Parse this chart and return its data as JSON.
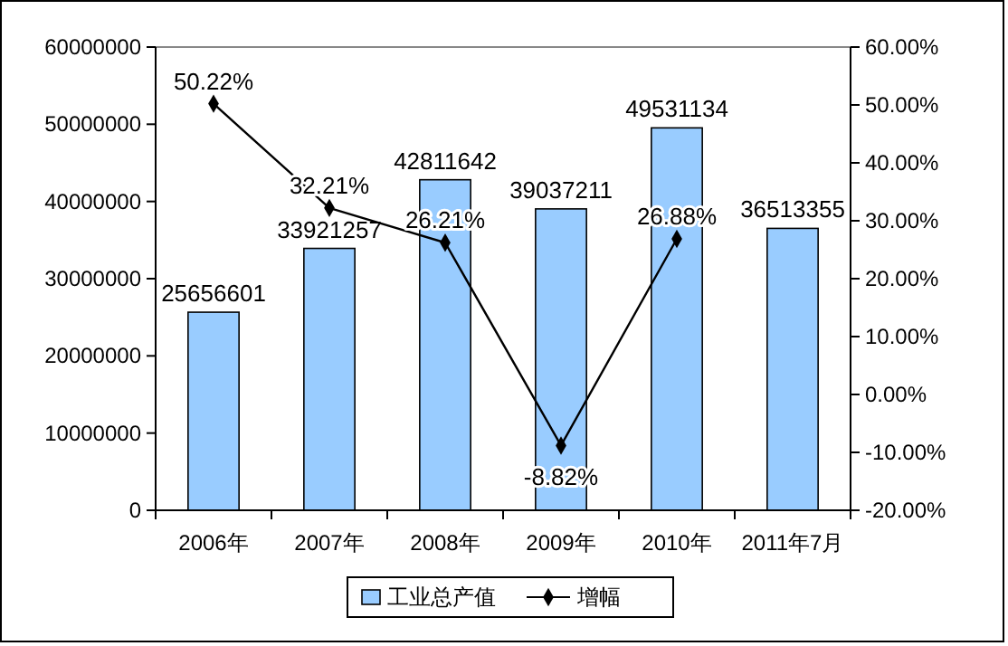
{
  "chart_data": {
    "type": "bar",
    "categories": [
      "2006年",
      "2007年",
      "2008年",
      "2009年",
      "2010年",
      "2011年7月"
    ],
    "series": [
      {
        "name": "工业总产值",
        "color": "#99ccff",
        "values": [
          25656601,
          33921257,
          42811642,
          39037211,
          49531134,
          36513355
        ],
        "value_labels": [
          "25656601",
          "33921257",
          "42811642",
          "39037211",
          "49531134",
          "36513355"
        ]
      },
      {
        "name": "增幅",
        "type": "line",
        "axis": "y2",
        "color": "#000000",
        "values": [
          50.22,
          32.21,
          26.21,
          -8.82,
          26.88,
          null
        ],
        "value_labels": [
          "50.22%",
          "32.21%",
          "26.21%",
          "-8.82%",
          "26.88%",
          null
        ]
      }
    ],
    "ylim": [
      0,
      60000000
    ],
    "yticks": [
      0,
      10000000,
      20000000,
      30000000,
      40000000,
      50000000,
      60000000
    ],
    "y2lim": [
      -20,
      60
    ],
    "y2ticks": [
      {
        "value": -20,
        "label": "-20.00%"
      },
      {
        "value": -10,
        "label": "-10.00%"
      },
      {
        "value": 0,
        "label": "0.00%"
      },
      {
        "value": 10,
        "label": "10.00%"
      },
      {
        "value": 20,
        "label": "20.00%"
      },
      {
        "value": 30,
        "label": "30.00%"
      },
      {
        "value": 40,
        "label": "40.00%"
      },
      {
        "value": 50,
        "label": "50.00%"
      },
      {
        "value": 60,
        "label": "60.00%"
      }
    ],
    "marker": "diamond",
    "legend": "bottom",
    "grid": false
  }
}
